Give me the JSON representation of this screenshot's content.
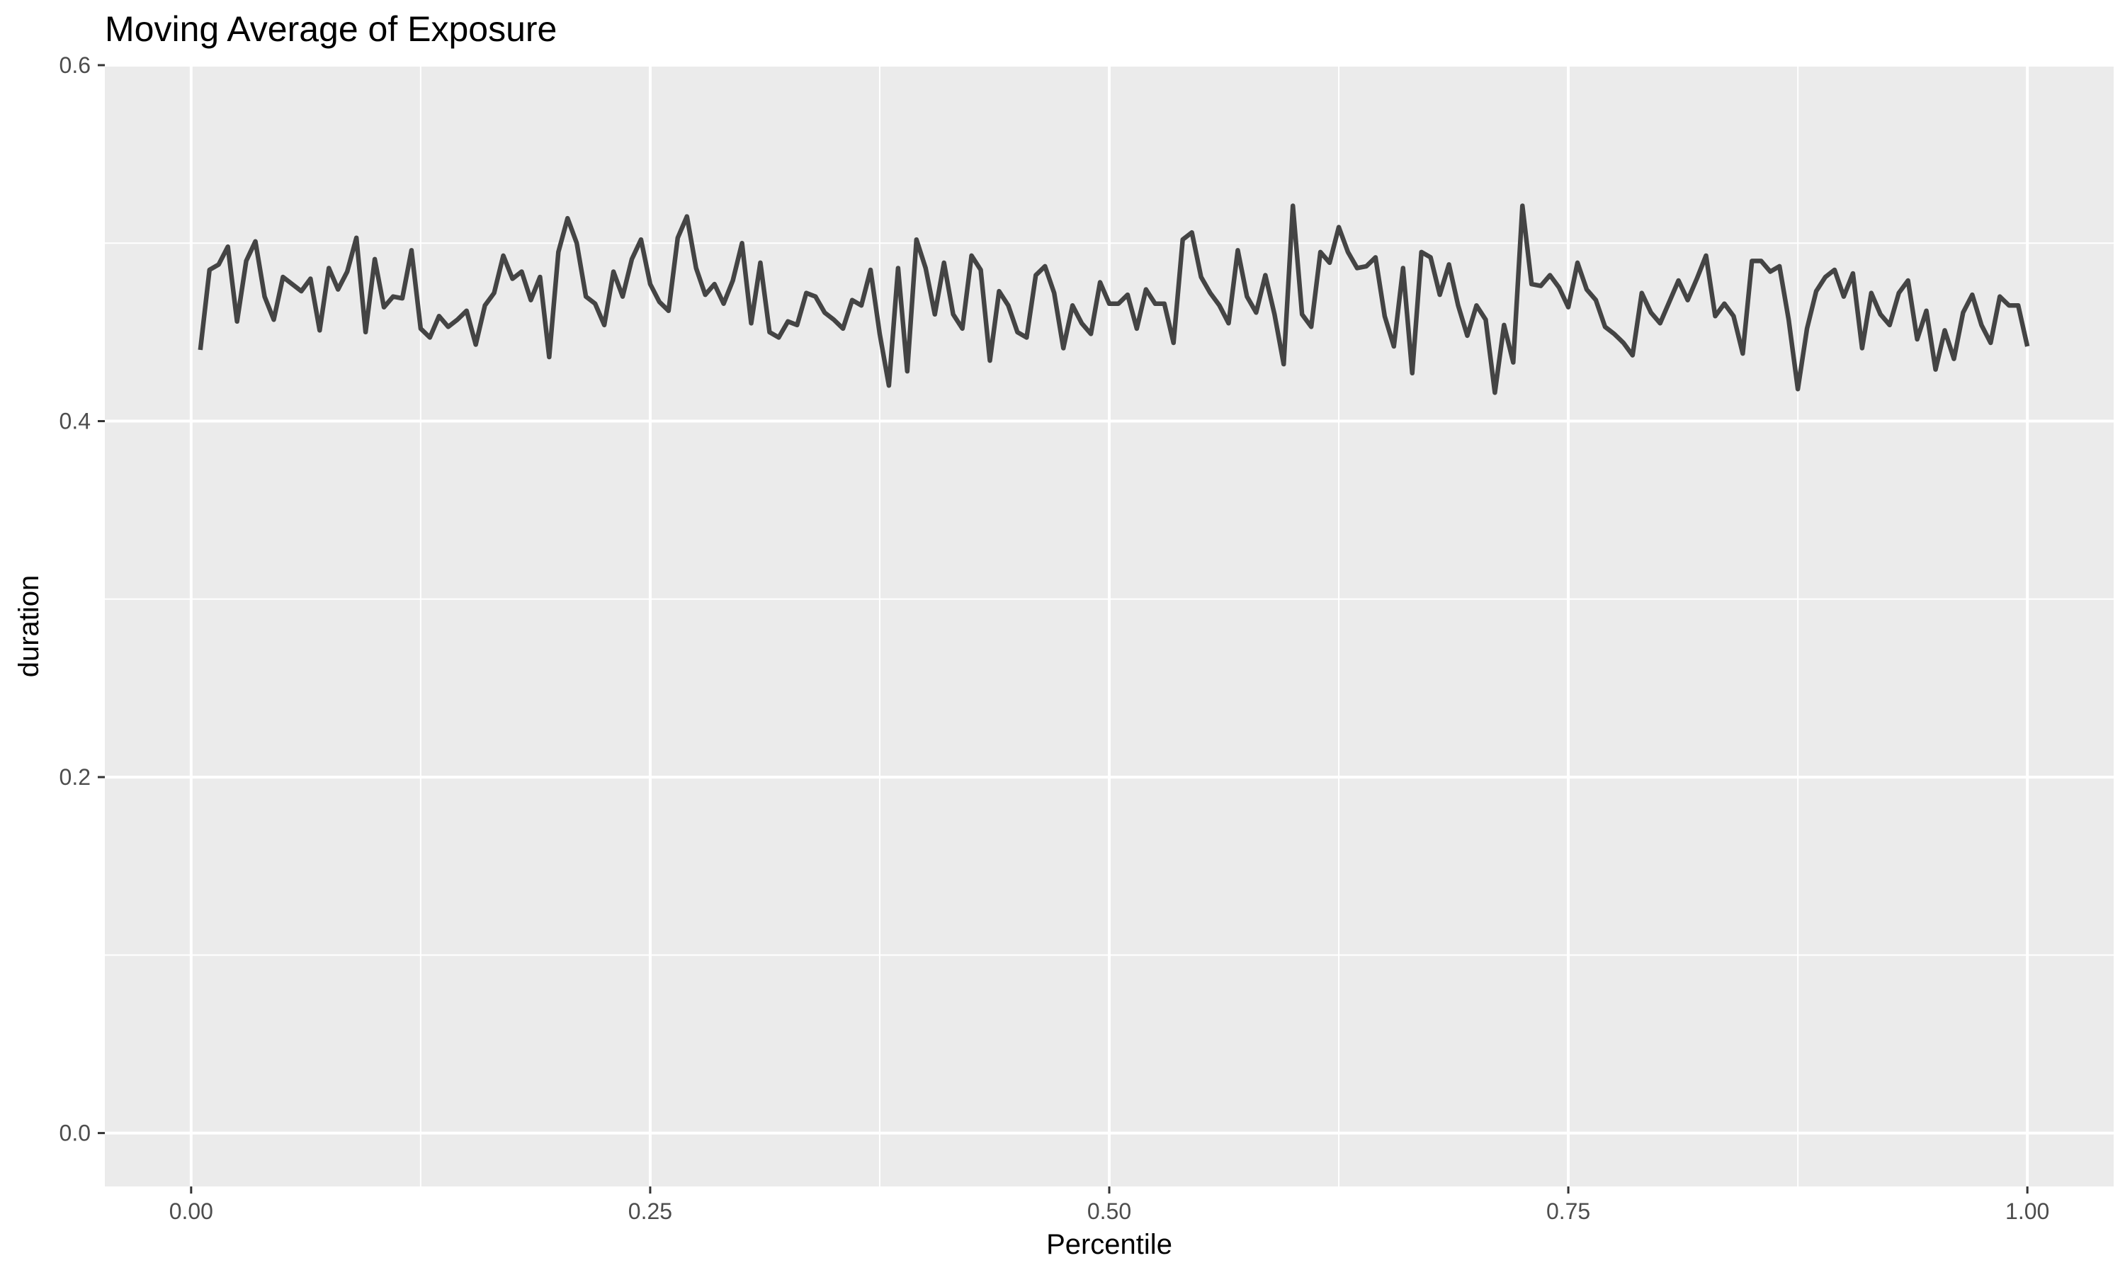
{
  "chart_data": {
    "type": "line",
    "title": "Moving Average of Exposure",
    "xlabel": "Percentile",
    "ylabel": "duration",
    "xlim": [
      -0.047,
      1.047
    ],
    "ylim": [
      -0.03,
      0.6
    ],
    "x_ticks": [
      0.0,
      0.25,
      0.5,
      0.75,
      1.0
    ],
    "x_tick_labels": [
      "0.00",
      "0.25",
      "0.50",
      "0.75",
      "1.00"
    ],
    "y_ticks": [
      0.0,
      0.2,
      0.4,
      0.6
    ],
    "y_tick_labels": [
      "0.0",
      "0.2",
      "0.4",
      "0.6"
    ],
    "grid": true,
    "colors": {
      "panel": "#ebebeb",
      "grid": "#ffffff",
      "line": "#444444",
      "background": "#ffffff"
    },
    "series": [
      {
        "x": [
          0.005,
          0.01,
          0.015,
          0.02,
          0.025,
          0.03,
          0.035,
          0.04,
          0.045,
          0.05,
          0.055,
          0.06,
          0.065,
          0.07,
          0.075,
          0.08,
          0.085,
          0.09,
          0.095,
          0.1,
          0.105,
          0.11,
          0.115,
          0.12,
          0.125,
          0.13,
          0.135,
          0.14,
          0.145,
          0.15,
          0.155,
          0.16,
          0.165,
          0.17,
          0.175,
          0.18,
          0.185,
          0.19,
          0.195,
          0.2,
          0.205,
          0.21,
          0.215,
          0.22,
          0.225,
          0.23,
          0.235,
          0.24,
          0.245,
          0.25,
          0.255,
          0.26,
          0.265,
          0.27,
          0.275,
          0.28,
          0.285,
          0.29,
          0.295,
          0.3,
          0.305,
          0.31,
          0.315,
          0.32,
          0.325,
          0.33,
          0.335,
          0.34,
          0.345,
          0.35,
          0.355,
          0.36,
          0.365,
          0.37,
          0.375,
          0.38,
          0.385,
          0.39,
          0.395,
          0.4,
          0.405,
          0.41,
          0.415,
          0.42,
          0.425,
          0.43,
          0.435,
          0.44,
          0.445,
          0.45,
          0.455,
          0.46,
          0.465,
          0.47,
          0.475,
          0.48,
          0.485,
          0.49,
          0.495,
          0.5,
          0.505,
          0.51,
          0.515,
          0.52,
          0.525,
          0.53,
          0.535,
          0.54,
          0.545,
          0.55,
          0.555,
          0.56,
          0.565,
          0.57,
          0.575,
          0.58,
          0.585,
          0.59,
          0.595,
          0.6,
          0.605,
          0.61,
          0.615,
          0.62,
          0.625,
          0.63,
          0.635,
          0.64,
          0.645,
          0.65,
          0.655,
          0.66,
          0.665,
          0.67,
          0.675,
          0.68,
          0.685,
          0.69,
          0.695,
          0.7,
          0.705,
          0.71,
          0.715,
          0.72,
          0.725,
          0.73,
          0.735,
          0.74,
          0.745,
          0.75,
          0.755,
          0.76,
          0.765,
          0.77,
          0.775,
          0.78,
          0.785,
          0.79,
          0.795,
          0.8,
          0.805,
          0.81,
          0.815,
          0.82,
          0.825,
          0.83,
          0.835,
          0.84,
          0.845,
          0.85,
          0.855,
          0.86,
          0.865,
          0.87,
          0.875,
          0.88,
          0.885,
          0.89,
          0.895,
          0.9,
          0.905,
          0.91,
          0.915,
          0.92,
          0.925,
          0.93,
          0.935,
          0.94,
          0.945,
          0.95,
          0.955,
          0.96,
          0.965,
          0.97,
          0.975,
          0.98,
          0.985,
          0.99,
          0.995,
          1.0
        ],
        "values": [
          0.44,
          0.485,
          0.488,
          0.498,
          0.456,
          0.49,
          0.501,
          0.47,
          0.457,
          0.481,
          0.477,
          0.473,
          0.48,
          0.451,
          0.486,
          0.474,
          0.484,
          0.503,
          0.45,
          0.491,
          0.464,
          0.47,
          0.469,
          0.496,
          0.452,
          0.447,
          0.459,
          0.453,
          0.457,
          0.462,
          0.443,
          0.465,
          0.472,
          0.493,
          0.48,
          0.484,
          0.468,
          0.481,
          0.436,
          0.495,
          0.514,
          0.5,
          0.47,
          0.466,
          0.454,
          0.484,
          0.47,
          0.491,
          0.502,
          0.477,
          0.467,
          0.462,
          0.503,
          0.515,
          0.486,
          0.471,
          0.477,
          0.466,
          0.479,
          0.5,
          0.455,
          0.489,
          0.45,
          0.447,
          0.456,
          0.454,
          0.472,
          0.47,
          0.461,
          0.457,
          0.452,
          0.468,
          0.465,
          0.485,
          0.449,
          0.42,
          0.486,
          0.428,
          0.502,
          0.486,
          0.46,
          0.489,
          0.46,
          0.452,
          0.493,
          0.485,
          0.434,
          0.473,
          0.465,
          0.45,
          0.447,
          0.482,
          0.487,
          0.472,
          0.441,
          0.465,
          0.455,
          0.449,
          0.478,
          0.466,
          0.466,
          0.471,
          0.452,
          0.474,
          0.466,
          0.466,
          0.444,
          0.502,
          0.506,
          0.481,
          0.472,
          0.465,
          0.455,
          0.496,
          0.47,
          0.461,
          0.482,
          0.46,
          0.432,
          0.521,
          0.46,
          0.453,
          0.495,
          0.489,
          0.509,
          0.495,
          0.486,
          0.487,
          0.492,
          0.459,
          0.442,
          0.486,
          0.427,
          0.495,
          0.492,
          0.471,
          0.488,
          0.465,
          0.448,
          0.465,
          0.457,
          0.416,
          0.454,
          0.433,
          0.521,
          0.477,
          0.476,
          0.482,
          0.475,
          0.464,
          0.489,
          0.474,
          0.468,
          0.453,
          0.449,
          0.444,
          0.437,
          0.472,
          0.461,
          0.455,
          0.467,
          0.479,
          0.468,
          0.48,
          0.493,
          0.459,
          0.466,
          0.459,
          0.438,
          0.49,
          0.49,
          0.484,
          0.487,
          0.457,
          0.418,
          0.452,
          0.473,
          0.481,
          0.485,
          0.47,
          0.483,
          0.441,
          0.472,
          0.46,
          0.454,
          0.472,
          0.479,
          0.446,
          0.462,
          0.429,
          0.451,
          0.435,
          0.461,
          0.471,
          0.454,
          0.444,
          0.47,
          0.465,
          0.465,
          0.442
        ]
      }
    ]
  }
}
